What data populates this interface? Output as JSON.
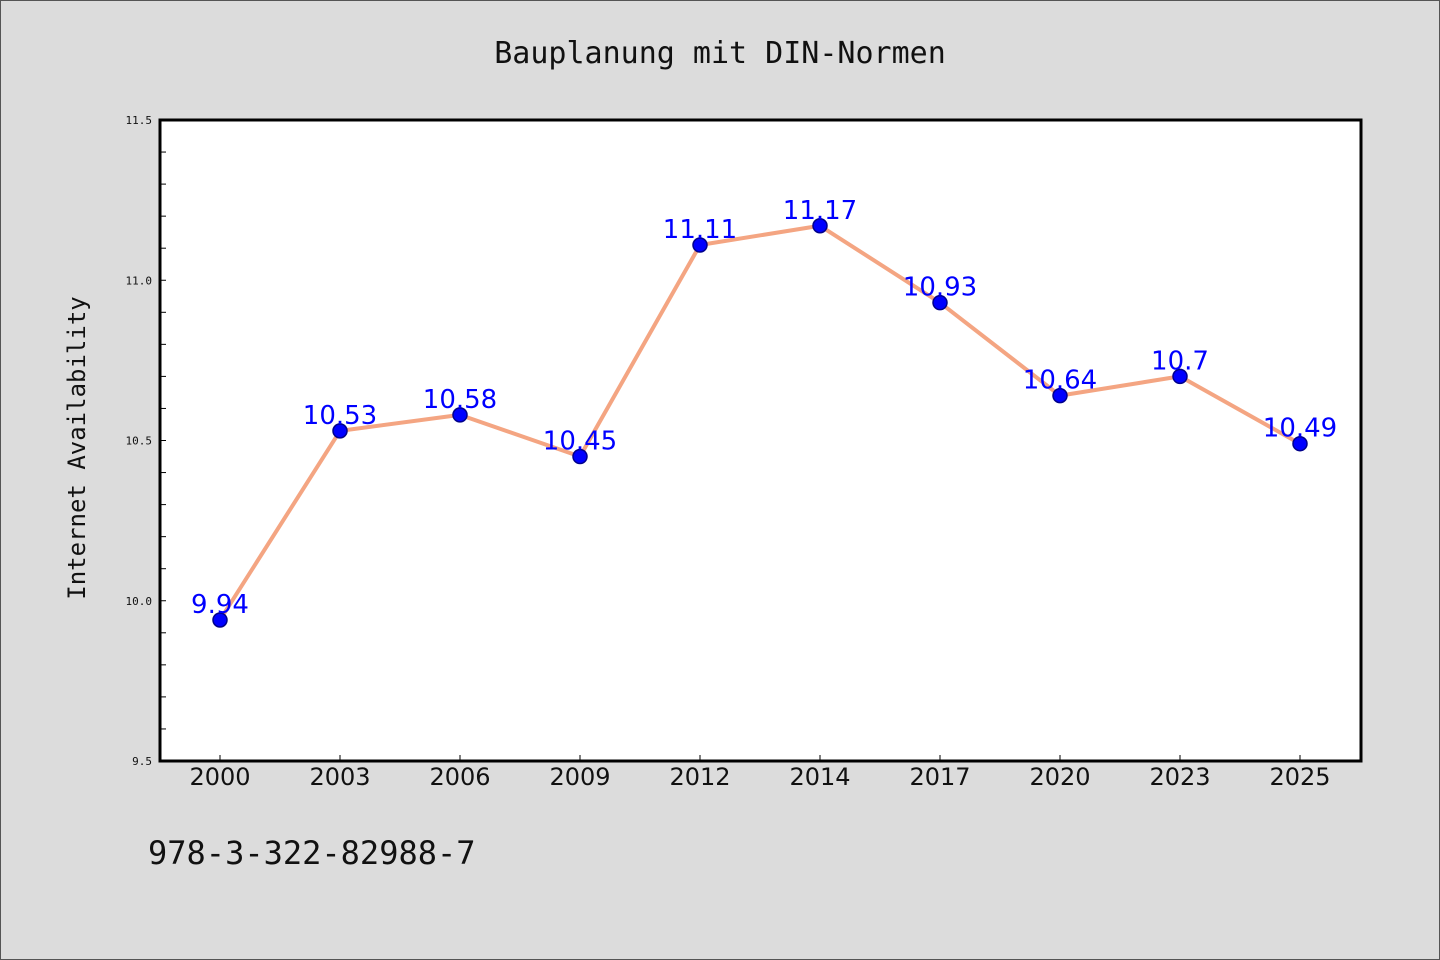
{
  "chart_data": {
    "type": "line",
    "title": "Bauplanung mit DIN-Normen",
    "xlabel": "",
    "ylabel": "Internet Availability",
    "categories": [
      "2000",
      "2003",
      "2006",
      "2009",
      "2012",
      "2014",
      "2017",
      "2020",
      "2023",
      "2025"
    ],
    "series": [
      {
        "values": [
          9.94,
          10.53,
          10.58,
          10.45,
          11.11,
          11.17,
          10.93,
          10.64,
          10.7,
          10.49
        ],
        "data_labels": [
          "9.94",
          "10.53",
          "10.58",
          "10.45",
          "11.11",
          "11.17",
          "10.93",
          "10.64",
          "10.7",
          "10.49"
        ]
      }
    ],
    "ylim": [
      9.5,
      11.5
    ],
    "yticks": [
      "9.5",
      "10.0",
      "10.5",
      "11.0",
      "11.5"
    ],
    "grid": false,
    "colors": {
      "line": "#f4a582",
      "marker": "#0000ff",
      "marker_edge": "#00008b",
      "data_label": "#0000ff",
      "background": "#dcdcdc",
      "plot_area": "#ffffff"
    }
  },
  "footer": {
    "isbn": "978-3-322-82988-7"
  }
}
